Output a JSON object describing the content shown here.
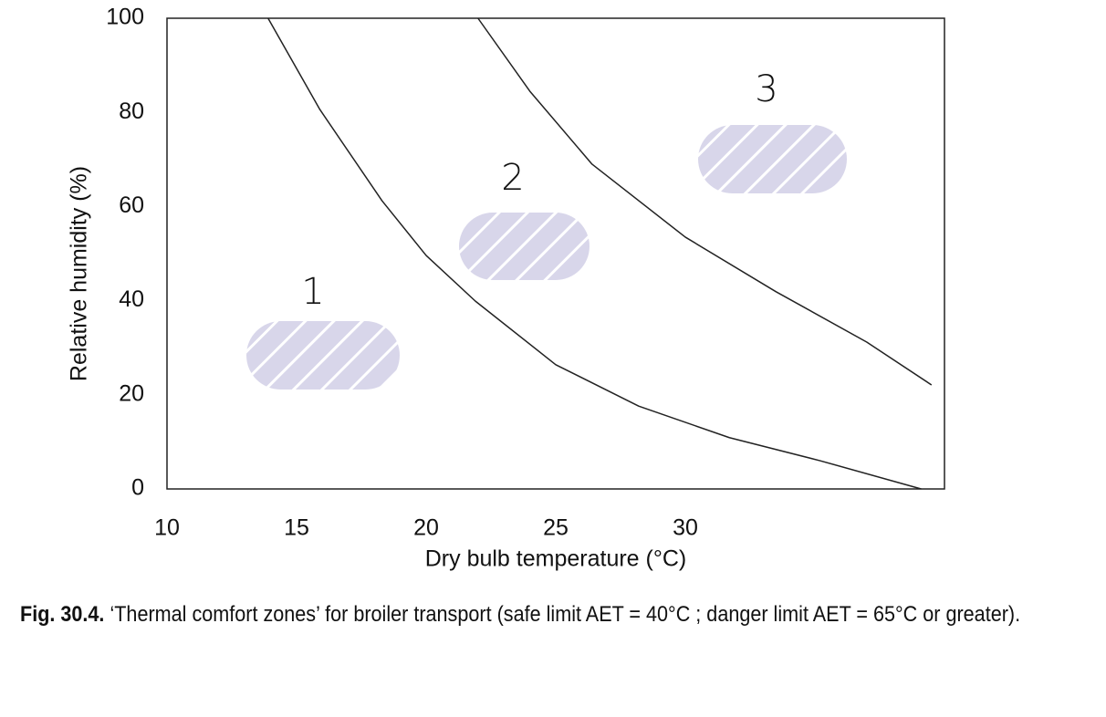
{
  "chart_data": {
    "type": "line",
    "xlabel": "Dry bulb temperature (°C)",
    "ylabel": "Relative humidity (%)",
    "xlim": [
      10,
      40
    ],
    "ylim": [
      0,
      100
    ],
    "xticks": [
      10,
      15,
      20,
      25,
      30
    ],
    "yticks": [
      0,
      20,
      40,
      60,
      80,
      100
    ],
    "series": [
      {
        "color": "#222",
        "x": [
          13.9,
          15.9,
          18.3,
          20,
          21.9,
          25,
          28.2,
          31.7,
          35.2,
          39.1
        ],
        "values": [
          100,
          80.6,
          61.2,
          49.6,
          39.9,
          26.4,
          17.6,
          10.9,
          6,
          0
        ]
      },
      {
        "color": "#222",
        "x": [
          22,
          24,
          26.4,
          30,
          33.5,
          37,
          39.5
        ],
        "values": [
          100,
          84.5,
          69,
          53.5,
          41.9,
          31.2,
          22.1
        ]
      }
    ],
    "zones": [
      "1",
      "2",
      "3"
    ]
  },
  "caption": {
    "label": "Fig. 30.4.",
    "text": "‘Thermal comfort zones’ for broiler transport (safe limit AET = 40°C ; danger limit AET = 65°C or greater)."
  }
}
